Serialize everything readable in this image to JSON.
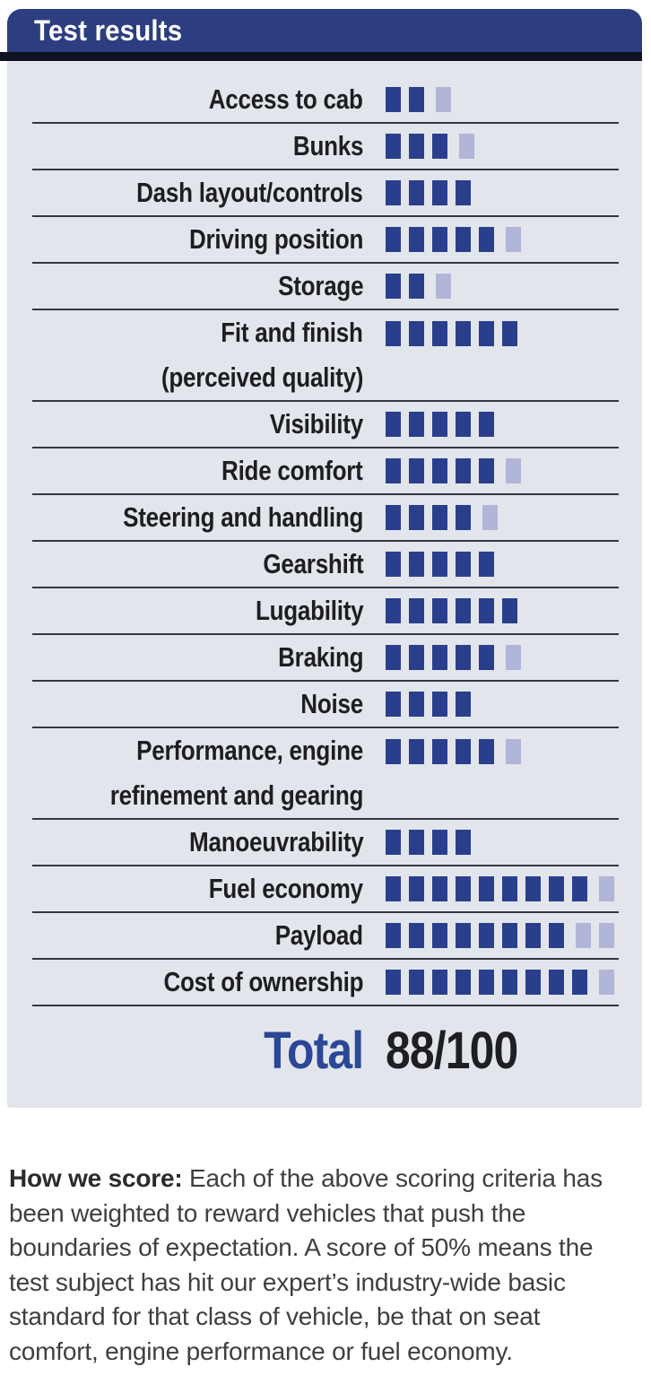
{
  "header": {
    "title": "Test results"
  },
  "colors": {
    "header_bg": "#2c3e7f",
    "stripe": "#0d1322",
    "panel_bg": "#e2e6ec",
    "block_filled": "#2a3f8c",
    "block_unfilled": "#b1b5d7",
    "separator": "#33373f",
    "total_accent": "#2b4796",
    "label_text": "#1e1e21",
    "footnote_text": "#3f3f3f"
  },
  "rows": [
    {
      "label": "Access to cab",
      "dark": 2,
      "light": 1
    },
    {
      "label": "Bunks",
      "dark": 3,
      "light": 1
    },
    {
      "label": "Dash layout/controls",
      "dark": 4,
      "light": 0
    },
    {
      "label": "Driving position",
      "dark": 5,
      "light": 1
    },
    {
      "label": "Storage",
      "dark": 2,
      "light": 1
    },
    {
      "label": "Fit and finish",
      "label2": "(perceived quality)",
      "dark": 6,
      "light": 0
    },
    {
      "label": "Visibility",
      "dark": 5,
      "light": 0
    },
    {
      "label": "Ride comfort",
      "dark": 5,
      "light": 1
    },
    {
      "label": "Steering and handling",
      "dark": 4,
      "light": 1
    },
    {
      "label": "Gearshift",
      "dark": 5,
      "light": 0
    },
    {
      "label": "Lugability",
      "dark": 6,
      "light": 0
    },
    {
      "label": "Braking",
      "dark": 5,
      "light": 1
    },
    {
      "label": "Noise",
      "dark": 4,
      "light": 0
    },
    {
      "label": "Performance, engine",
      "label2": "refinement and gearing",
      "dark": 5,
      "light": 1
    },
    {
      "label": "Manoeuvrability",
      "dark": 4,
      "light": 0
    },
    {
      "label": "Fuel economy",
      "dark": 9,
      "light": 1
    },
    {
      "label": "Payload",
      "dark": 8,
      "light": 2
    },
    {
      "label": "Cost of ownership",
      "dark": 9,
      "light": 1
    }
  ],
  "total": {
    "label": "Total",
    "value": "88/100"
  },
  "footnote": {
    "lead": "How we score:",
    "body": " Each of the above scoring criteria has been weighted to reward vehicles that push the boundaries of expectation. A score of 50% means the test subject has hit our expert’s industry-wide basic standard for that class of vehicle, be that on seat comfort, engine performance or fuel economy."
  },
  "chart_data": {
    "type": "bar",
    "title": "Test results",
    "orientation": "horizontal-blocks",
    "categories": [
      "Access to cab",
      "Bunks",
      "Dash layout/controls",
      "Driving position",
      "Storage",
      "Fit and finish (perceived quality)",
      "Visibility",
      "Ride comfort",
      "Steering and handling",
      "Gearshift",
      "Lugability",
      "Braking",
      "Noise",
      "Performance, engine refinement and gearing",
      "Manoeuvrability",
      "Fuel economy",
      "Payload",
      "Cost of ownership"
    ],
    "series": [
      {
        "name": "filled blocks (score achieved)",
        "color": "#2a3f8c",
        "values": [
          2,
          3,
          4,
          5,
          2,
          6,
          5,
          5,
          4,
          5,
          6,
          5,
          4,
          5,
          4,
          9,
          8,
          9
        ]
      },
      {
        "name": "unfilled blocks (score missed)",
        "color": "#b1b5d7",
        "values": [
          1,
          1,
          0,
          1,
          1,
          0,
          0,
          1,
          1,
          0,
          0,
          1,
          0,
          1,
          0,
          1,
          2,
          1
        ]
      }
    ],
    "total": "88/100",
    "legend": "none",
    "grid": "row separators only"
  }
}
